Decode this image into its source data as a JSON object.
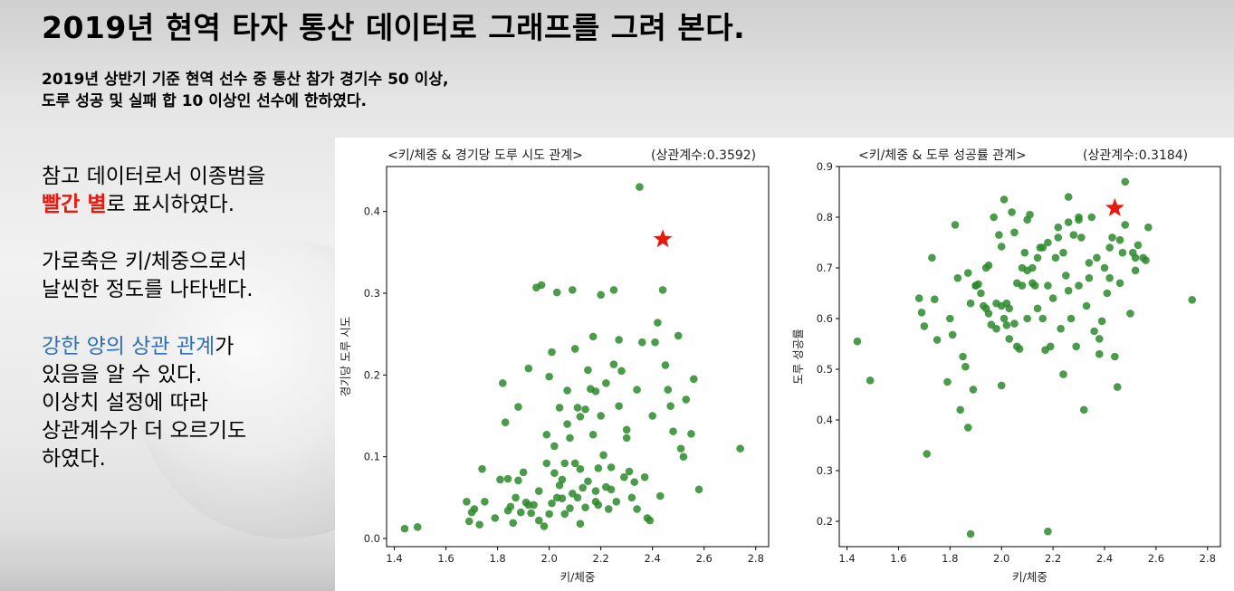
{
  "slide": {
    "title": "2019년 현역 타자 통산 데이터로 그래프를 그려 본다.",
    "subtitle_lines": [
      "2019년 상반기 기준 현역 선수 중 통산 참가 경기수 50 이상,",
      "도루 성공 및 실패 합 10 이상인 선수에 한하였다."
    ],
    "notes": {
      "line1": "참고 데이터로서 이종범을",
      "line2_red": "빨간 별",
      "line2_rest": "로 표시하였다.",
      "line3": "가로축은 키/체중으로서",
      "line4": "날씬한 정도를 나타낸다.",
      "line5_blue": "강한 양의 상관 관계",
      "line5_rest": "가",
      "line6": "있음을 알 수 있다.",
      "line7": "이상치 설정에 따라",
      "line8": "상관계수가 더 오르기도",
      "line9": "하였다."
    }
  },
  "colors": {
    "point": "#2a8a2a",
    "star": "#e8190f",
    "highlight_red": "#e8190f",
    "highlight_blue": "#2f6fb5"
  },
  "chart_data": [
    {
      "type": "scatter",
      "title": "<키/체중 & 경기당 도루 시도 관계>",
      "annotation": "(상관계수:0.3592)",
      "xlabel": "키/체중",
      "ylabel": "경기당 도루 시도",
      "xlim": [
        1.37,
        2.85
      ],
      "ylim": [
        -0.01,
        0.455
      ],
      "xticks": [
        "1.4",
        "1.6",
        "1.8",
        "2.0",
        "2.2",
        "2.4",
        "2.6",
        "2.8"
      ],
      "yticks": [
        "0.0",
        "0.1",
        "0.2",
        "0.3",
        "0.4"
      ],
      "x": [
        1.44,
        1.49,
        1.68,
        1.69,
        1.7,
        1.71,
        1.73,
        1.74,
        1.75,
        1.79,
        1.81,
        1.82,
        1.83,
        1.84,
        1.84,
        1.85,
        1.86,
        1.87,
        1.88,
        1.89,
        1.9,
        1.91,
        1.92,
        1.93,
        1.94,
        1.95,
        1.96,
        1.97,
        1.98,
        1.99,
        1.99,
        2.0,
        2.0,
        2.01,
        2.01,
        2.02,
        2.02,
        2.03,
        2.03,
        2.04,
        2.04,
        2.05,
        2.06,
        2.06,
        2.07,
        2.07,
        2.08,
        2.08,
        2.09,
        2.09,
        2.1,
        2.1,
        2.11,
        2.11,
        2.12,
        2.12,
        2.13,
        2.14,
        2.14,
        2.15,
        2.15,
        2.16,
        2.17,
        2.17,
        2.18,
        2.18,
        2.19,
        2.19,
        2.2,
        2.2,
        2.21,
        2.22,
        2.22,
        2.23,
        2.24,
        2.25,
        2.25,
        2.26,
        2.27,
        2.27,
        2.28,
        2.29,
        2.3,
        2.3,
        2.31,
        2.32,
        2.33,
        2.34,
        2.34,
        2.35,
        2.36,
        2.37,
        2.38,
        2.39,
        2.4,
        2.41,
        2.42,
        2.43,
        2.44,
        2.45,
        2.46,
        2.47,
        2.48,
        2.5,
        2.51,
        2.52,
        2.53,
        2.55,
        2.56,
        2.58,
        2.74,
        2.05,
        2.12,
        2.18,
        2.24,
        1.88,
        1.92,
        1.96
      ],
      "y": [
        0.012,
        0.014,
        0.045,
        0.021,
        0.032,
        0.036,
        0.017,
        0.085,
        0.045,
        0.025,
        0.072,
        0.19,
        0.142,
        0.034,
        0.073,
        0.039,
        0.019,
        0.05,
        0.161,
        0.032,
        0.081,
        0.044,
        0.208,
        0.031,
        0.041,
        0.307,
        0.058,
        0.31,
        0.015,
        0.092,
        0.127,
        0.03,
        0.198,
        0.043,
        0.228,
        0.08,
        0.113,
        0.05,
        0.301,
        0.065,
        0.16,
        0.049,
        0.03,
        0.092,
        0.14,
        0.181,
        0.037,
        0.123,
        0.055,
        0.304,
        0.092,
        0.232,
        0.05,
        0.16,
        0.085,
        0.149,
        0.062,
        0.038,
        0.158,
        0.07,
        0.206,
        0.183,
        0.127,
        0.247,
        0.058,
        0.18,
        0.041,
        0.086,
        0.15,
        0.298,
        0.102,
        0.063,
        0.19,
        0.036,
        0.087,
        0.304,
        0.213,
        0.045,
        0.243,
        0.162,
        0.205,
        0.075,
        0.133,
        0.123,
        0.082,
        0.05,
        0.069,
        0.182,
        0.036,
        0.43,
        0.24,
        0.075,
        0.025,
        0.022,
        0.15,
        0.24,
        0.264,
        0.052,
        0.304,
        0.212,
        0.182,
        0.162,
        0.131,
        0.248,
        0.11,
        0.1,
        0.17,
        0.128,
        0.195,
        0.06,
        0.11,
        0.072,
        0.018,
        0.045,
        0.06,
        0.071,
        0.041,
        0.022
      ],
      "star": {
        "x": 2.44,
        "y": 0.366
      },
      "grid": false
    },
    {
      "type": "scatter",
      "title": "<키/체중 & 도루 성공률 관계>",
      "annotation": "(상관계수:0.3184)",
      "xlabel": "키/체중",
      "ylabel": "도루 성공률",
      "xlim": [
        1.37,
        2.85
      ],
      "ylim": [
        0.15,
        0.9
      ],
      "xticks": [
        "1.4",
        "1.6",
        "1.8",
        "2.0",
        "2.2",
        "2.4",
        "2.6",
        "2.8"
      ],
      "yticks": [
        "0.2",
        "0.3",
        "0.4",
        "0.5",
        "0.6",
        "0.7",
        "0.8",
        "0.9"
      ],
      "x": [
        1.44,
        1.49,
        1.68,
        1.69,
        1.7,
        1.71,
        1.73,
        1.74,
        1.75,
        1.79,
        1.8,
        1.81,
        1.82,
        1.83,
        1.84,
        1.85,
        1.86,
        1.87,
        1.88,
        1.89,
        1.9,
        1.91,
        1.92,
        1.93,
        1.94,
        1.95,
        1.96,
        1.97,
        1.98,
        1.99,
        2.0,
        2.0,
        2.01,
        2.01,
        2.02,
        2.03,
        2.03,
        2.04,
        2.05,
        2.06,
        2.07,
        2.08,
        2.09,
        2.1,
        2.11,
        2.12,
        2.13,
        2.14,
        2.15,
        2.16,
        2.17,
        2.18,
        2.19,
        2.2,
        2.21,
        2.22,
        2.23,
        2.24,
        2.25,
        2.26,
        2.27,
        2.28,
        2.29,
        2.3,
        2.31,
        2.32,
        2.33,
        2.34,
        2.35,
        2.36,
        2.37,
        2.38,
        2.39,
        2.4,
        2.41,
        2.42,
        2.43,
        2.45,
        2.46,
        2.47,
        2.48,
        2.5,
        2.51,
        2.52,
        2.53,
        2.55,
        2.57,
        2.74,
        1.87,
        1.88,
        2.16,
        2.3,
        2.08,
        2.12,
        2.24,
        1.95,
        2.0,
        2.05,
        2.1,
        2.14,
        2.18,
        2.22,
        2.26,
        2.3,
        2.34,
        2.38,
        2.42,
        2.44,
        2.46,
        2.48,
        2.52,
        2.56,
        1.9,
        1.94,
        1.98,
        2.02,
        2.06,
        2.1,
        2.18,
        2.26
      ],
      "y": [
        0.555,
        0.478,
        0.64,
        0.612,
        0.585,
        0.333,
        0.72,
        0.638,
        0.558,
        0.475,
        0.6,
        0.568,
        0.785,
        0.68,
        0.42,
        0.525,
        0.505,
        0.385,
        0.175,
        0.46,
        0.665,
        0.668,
        0.65,
        0.625,
        0.7,
        0.61,
        0.588,
        0.8,
        0.63,
        0.765,
        0.742,
        0.468,
        0.6,
        0.835,
        0.587,
        0.62,
        0.56,
        0.81,
        0.59,
        0.67,
        0.54,
        0.665,
        0.73,
        0.795,
        0.805,
        0.7,
        0.665,
        0.62,
        0.74,
        0.6,
        0.538,
        0.18,
        0.545,
        0.64,
        0.72,
        0.76,
        0.58,
        0.49,
        0.685,
        0.84,
        0.6,
        0.765,
        0.545,
        0.665,
        0.76,
        0.42,
        0.625,
        0.68,
        0.8,
        0.575,
        0.72,
        0.53,
        0.595,
        0.7,
        0.65,
        0.74,
        0.76,
        0.465,
        0.67,
        0.73,
        0.785,
        0.61,
        0.73,
        0.695,
        0.745,
        0.72,
        0.78,
        0.637,
        0.69,
        0.63,
        0.74,
        0.795,
        0.7,
        0.67,
        0.73,
        0.705,
        0.625,
        0.77,
        0.695,
        0.72,
        0.75,
        0.78,
        0.655,
        0.8,
        0.71,
        0.56,
        0.68,
        0.525,
        0.755,
        0.87,
        0.72,
        0.715,
        0.665,
        0.62,
        0.58,
        0.63,
        0.545,
        0.6,
        0.665,
        0.79
      ],
      "star": {
        "x": 2.44,
        "y": 0.818
      },
      "grid": false
    }
  ]
}
